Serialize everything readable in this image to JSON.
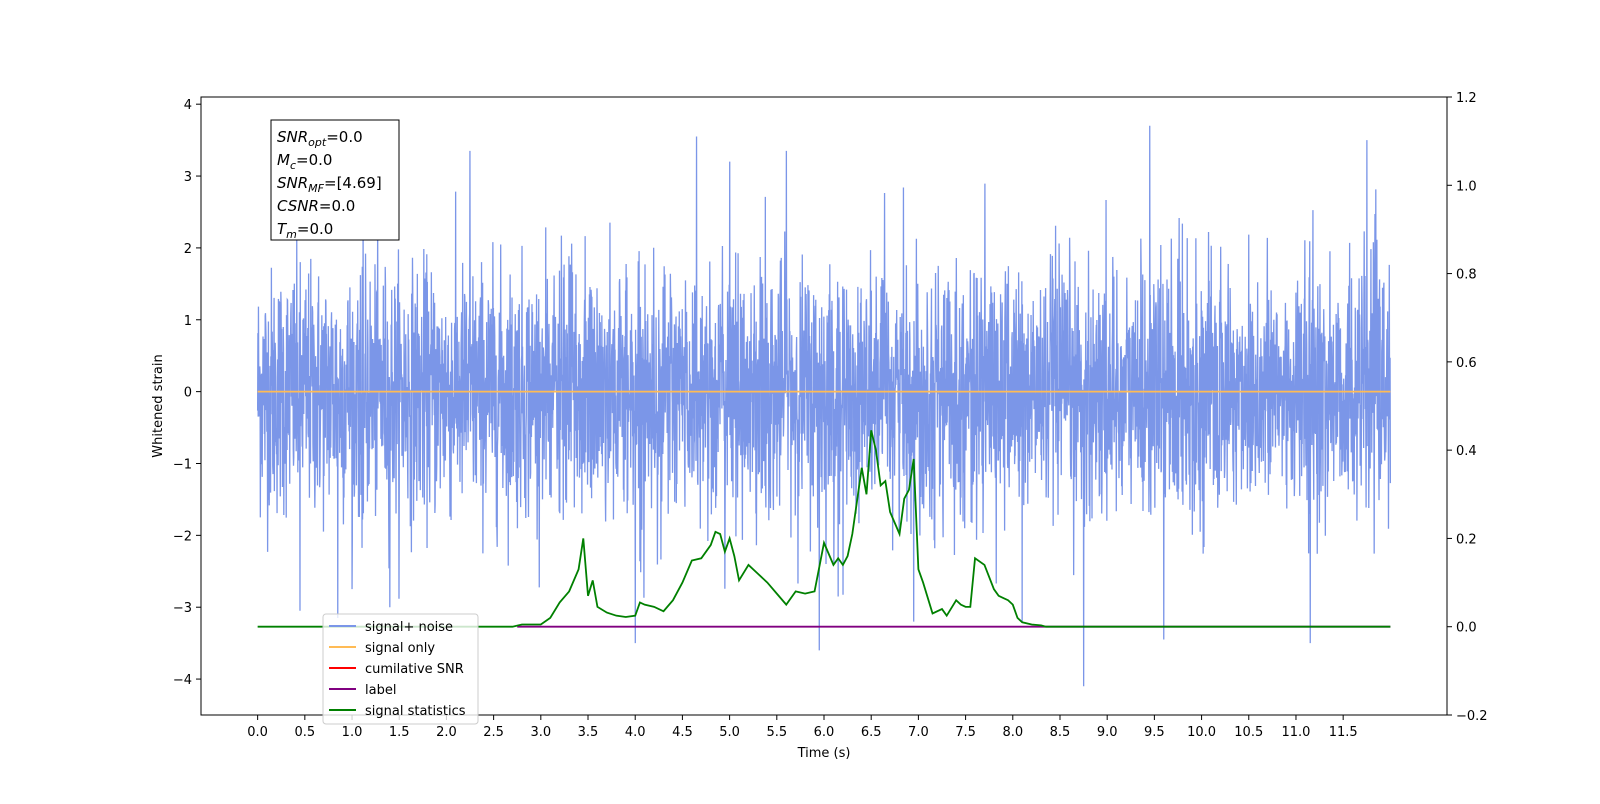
{
  "chart_data": {
    "type": "line",
    "xlabel": "Time (s)",
    "ylabel": "Whitened strain",
    "xlim": [
      -0.6,
      12.6
    ],
    "ylim_left": [
      -4.5,
      4.1
    ],
    "ylim_right": [
      -0.2,
      1.2
    ],
    "x_ticks": [
      0.0,
      0.5,
      1.0,
      1.5,
      2.0,
      2.5,
      3.0,
      3.5,
      4.0,
      4.5,
      5.0,
      5.5,
      6.0,
      6.5,
      7.0,
      7.5,
      8.0,
      8.5,
      9.0,
      9.5,
      10.0,
      10.5,
      11.0,
      11.5
    ],
    "x_tick_labels": [
      "0.0",
      "0.5",
      "1.0",
      "1.5",
      "2.0",
      "2.5",
      "3.0",
      "3.5",
      "4.0",
      "4.5",
      "5.0",
      "5.5",
      "6.0",
      "6.5",
      "7.0",
      "7.5",
      "8.0",
      "8.5",
      "9.0",
      "9.5",
      "10.0",
      "10.5",
      "11.0",
      "11.5"
    ],
    "y_left_ticks": [
      4,
      3,
      2,
      1,
      0,
      -1,
      -2,
      -3,
      -4
    ],
    "y_left_tick_labels": [
      "4",
      "3",
      "2",
      "1",
      "0",
      "−1",
      "−2",
      "−3",
      "−4"
    ],
    "y_right_ticks": [
      1.2,
      1.0,
      0.8,
      0.6,
      0.4,
      0.2,
      0.0,
      -0.2
    ],
    "y_right_tick_labels": [
      "1.2",
      "1.0",
      "0.8",
      "0.6",
      "0.4",
      "0.2",
      "0.0",
      "−0.2"
    ],
    "grid": false,
    "noise": {
      "t_start": 0.0,
      "t_end": 12.0,
      "sigma": 0.85,
      "color": "#7b96e8",
      "spikes": [
        [
          0.45,
          -3.05
        ],
        [
          0.85,
          -3.15
        ],
        [
          1.4,
          -3.0
        ],
        [
          2.25,
          3.35
        ],
        [
          4.0,
          -3.5
        ],
        [
          4.65,
          3.55
        ],
        [
          5.0,
          3.2
        ],
        [
          5.6,
          3.35
        ],
        [
          5.95,
          -3.6
        ],
        [
          6.95,
          -3.2
        ],
        [
          8.1,
          -3.2
        ],
        [
          8.75,
          -4.1
        ],
        [
          9.45,
          3.7
        ],
        [
          9.6,
          -3.45
        ],
        [
          11.15,
          -3.5
        ],
        [
          11.75,
          3.5
        ]
      ]
    },
    "series": [
      {
        "name": "signal+ noise",
        "color": "#7b96e8",
        "axis": "left"
      },
      {
        "name": "signal only",
        "color": "#ffbb55",
        "axis": "left",
        "x": [
          0.0,
          12.0
        ],
        "y": [
          0.0,
          0.0
        ]
      },
      {
        "name": "cumilative SNR",
        "color": "#ff0000",
        "axis": "right",
        "x": [],
        "y": []
      },
      {
        "name": "label",
        "color": "#800080",
        "axis": "right",
        "x": [
          2.75,
          12.0
        ],
        "y": [
          0.0,
          0.0
        ]
      },
      {
        "name": "signal statistics",
        "color": "#008000",
        "axis": "right",
        "x": [
          0.0,
          2.7,
          2.8,
          3.0,
          3.1,
          3.2,
          3.3,
          3.4,
          3.45,
          3.5,
          3.55,
          3.6,
          3.7,
          3.8,
          3.9,
          4.0,
          4.05,
          4.1,
          4.2,
          4.3,
          4.4,
          4.5,
          4.6,
          4.7,
          4.8,
          4.85,
          4.9,
          4.95,
          5.0,
          5.05,
          5.1,
          5.2,
          5.3,
          5.4,
          5.5,
          5.6,
          5.7,
          5.8,
          5.9,
          6.0,
          6.1,
          6.15,
          6.2,
          6.25,
          6.3,
          6.4,
          6.45,
          6.5,
          6.55,
          6.6,
          6.65,
          6.7,
          6.8,
          6.85,
          6.9,
          6.95,
          7.0,
          7.05,
          7.15,
          7.25,
          7.3,
          7.4,
          7.45,
          7.5,
          7.55,
          7.6,
          7.7,
          7.8,
          7.85,
          7.9,
          7.95,
          8.0,
          8.05,
          8.1,
          8.2,
          8.3,
          8.35,
          8.45,
          8.5,
          8.6,
          8.7,
          8.8,
          9.0,
          11.8,
          12.0
        ],
        "y": [
          0.0,
          0.0,
          0.005,
          0.005,
          0.02,
          0.055,
          0.08,
          0.13,
          0.2,
          0.07,
          0.105,
          0.045,
          0.032,
          0.025,
          0.022,
          0.025,
          0.055,
          0.05,
          0.045,
          0.035,
          0.06,
          0.1,
          0.15,
          0.155,
          0.185,
          0.215,
          0.21,
          0.17,
          0.2,
          0.16,
          0.105,
          0.14,
          0.12,
          0.1,
          0.075,
          0.05,
          0.08,
          0.075,
          0.08,
          0.19,
          0.14,
          0.155,
          0.14,
          0.16,
          0.21,
          0.36,
          0.3,
          0.445,
          0.4,
          0.32,
          0.33,
          0.26,
          0.21,
          0.29,
          0.31,
          0.38,
          0.13,
          0.1,
          0.03,
          0.04,
          0.025,
          0.06,
          0.05,
          0.045,
          0.045,
          0.155,
          0.14,
          0.085,
          0.07,
          0.065,
          0.06,
          0.05,
          0.02,
          0.01,
          0.005,
          0.003,
          0.0,
          0.0,
          0.0,
          0.0,
          0.0,
          0.0,
          0.0,
          0.0,
          0.0
        ]
      }
    ],
    "legend": {
      "position": "lower-left",
      "entries": [
        {
          "label": "signal+ noise",
          "color": "#7b96e8"
        },
        {
          "label": "signal only",
          "color": "#ffbb55"
        },
        {
          "label": "cumilative SNR",
          "color": "#ff0000"
        },
        {
          "label": "label",
          "color": "#800080"
        },
        {
          "label": "signal statistics",
          "color": "#008000"
        }
      ]
    },
    "stats_box": {
      "position": "top-left",
      "lines": [
        {
          "sym": "SNR",
          "sub": "opt",
          "val": "=0.0"
        },
        {
          "sym": "M",
          "sub": "c",
          "val": "=0.0"
        },
        {
          "sym": "SNR",
          "sub": "MF",
          "val": "=[4.69]"
        },
        {
          "sym": "CSNR",
          "sub": "",
          "val": "=0.0"
        },
        {
          "sym": "T",
          "sub": "m",
          "val": "=0.0"
        }
      ]
    }
  }
}
